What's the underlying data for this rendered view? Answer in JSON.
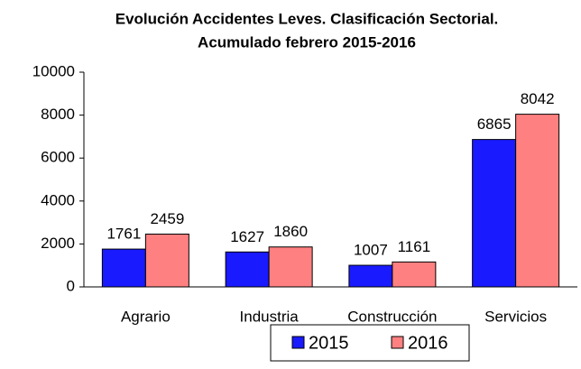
{
  "chart_data": {
    "type": "bar",
    "title": "Evolución Accidentes Leves. Clasificación Sectorial.",
    "subtitle": "Acumulado febrero 2015-2016",
    "categories": [
      "Agrario",
      "Industria",
      "Construcción",
      "Servicios"
    ],
    "series": [
      {
        "name": "2015",
        "color": "#1a1aff",
        "values": [
          1761,
          1627,
          1007,
          6865
        ]
      },
      {
        "name": "2016",
        "color": "#ff8080",
        "values": [
          2459,
          1860,
          1161,
          8042
        ]
      }
    ],
    "ylim": [
      0,
      10000
    ],
    "yticks": [
      0,
      2000,
      4000,
      6000,
      8000,
      10000
    ],
    "grid": false,
    "legend": "bottom"
  }
}
